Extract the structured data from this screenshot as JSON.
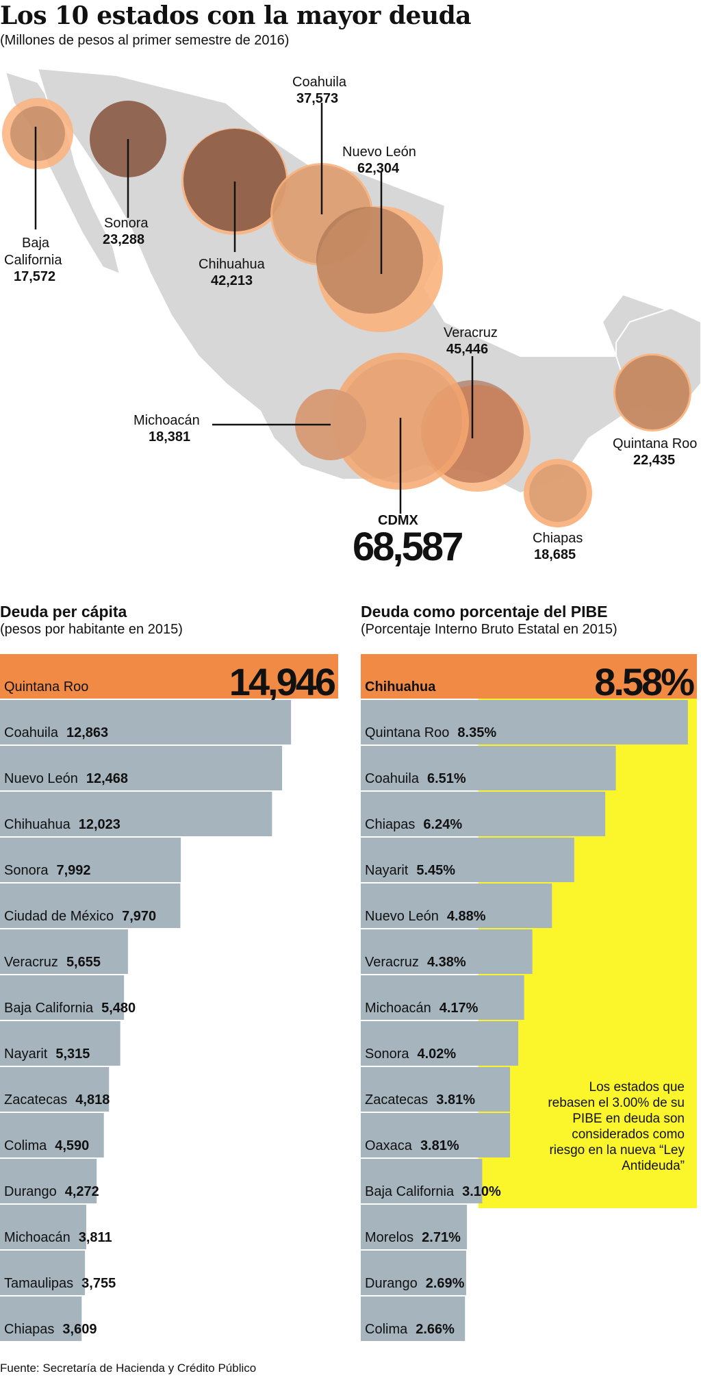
{
  "title": "Los 10 estados con la mayor deuda",
  "subtitle": "(Millones de pesos al primer semestre de 2016)",
  "colors": {
    "bar": "#a6b4be",
    "highlight": "#f08a45",
    "threshold": "#fbf52b",
    "map_land": "#d7d7d7"
  },
  "map": {
    "states": [
      {
        "name": "Baja California",
        "value": "17,572"
      },
      {
        "name": "Sonora",
        "value": "23,288"
      },
      {
        "name": "Chihuahua",
        "value": "42,213"
      },
      {
        "name": "Coahuila",
        "value": "37,573"
      },
      {
        "name": "Nuevo León",
        "value": "62,304"
      },
      {
        "name": "Veracruz",
        "value": "45,446"
      },
      {
        "name": "Michoacán",
        "value": "18,381"
      },
      {
        "name": "Quintana Roo",
        "value": "22,435"
      },
      {
        "name": "Chiapas",
        "value": "18,685"
      },
      {
        "name": "CDMX",
        "value": "68,587"
      }
    ]
  },
  "chart_data": [
    {
      "type": "bar",
      "title": "Deuda per cápita",
      "subtitle": "(pesos por habitante en 2015)",
      "categories": [
        "Quintana Roo",
        "Coahuila",
        "Nuevo León",
        "Chihuahua",
        "Sonora",
        "Ciudad de México",
        "Veracruz",
        "Baja California",
        "Nayarit",
        "Zacatecas",
        "Colima",
        "Durango",
        "Michoacán",
        "Tamaulipas",
        "Chiapas"
      ],
      "values": [
        14946,
        12863,
        12468,
        12023,
        7992,
        7970,
        5655,
        5480,
        5315,
        4818,
        4590,
        4272,
        3811,
        3755,
        3609
      ],
      "value_labels": [
        "14,946",
        "12,863",
        "12,468",
        "12,023",
        "7,992",
        "7,970",
        "5,655",
        "5,480",
        "5,315",
        "4,818",
        "4,590",
        "4,272",
        "3,811",
        "3,755",
        "3,609"
      ],
      "highlight_index": 0,
      "orientation": "horizontal"
    },
    {
      "type": "bar",
      "title": "Deuda como porcentaje del PIBE",
      "subtitle": "(Porcentaje Interno Bruto Estatal en 2015)",
      "categories": [
        "Chihuahua",
        "Quintana Roo",
        "Coahuila",
        "Chiapas",
        "Nayarit",
        "Nuevo León",
        "Veracruz",
        "Michoacán",
        "Sonora",
        "Zacatecas",
        "Oaxaca",
        "Baja California",
        "Morelos",
        "Durango",
        "Colima"
      ],
      "values": [
        8.58,
        8.35,
        6.51,
        6.24,
        5.45,
        4.88,
        4.38,
        4.17,
        4.02,
        3.81,
        3.81,
        3.1,
        2.71,
        2.69,
        2.66
      ],
      "value_labels": [
        "8.58%",
        "8.35%",
        "6.51%",
        "6.24%",
        "5.45%",
        "4.88%",
        "4.38%",
        "4.17%",
        "4.02%",
        "3.81%",
        "3.81%",
        "3.10%",
        "2.71%",
        "2.69%",
        "2.66%"
      ],
      "highlight_index": 0,
      "threshold": 3.0,
      "orientation": "horizontal"
    }
  ],
  "note": "Los estados que rebasen el 3.00% de su PIBE en deuda son considerados como riesgo en la nueva “Ley Antideuda”",
  "footer": "Fuente: Secretaría de Hacienda y Crédito Público"
}
